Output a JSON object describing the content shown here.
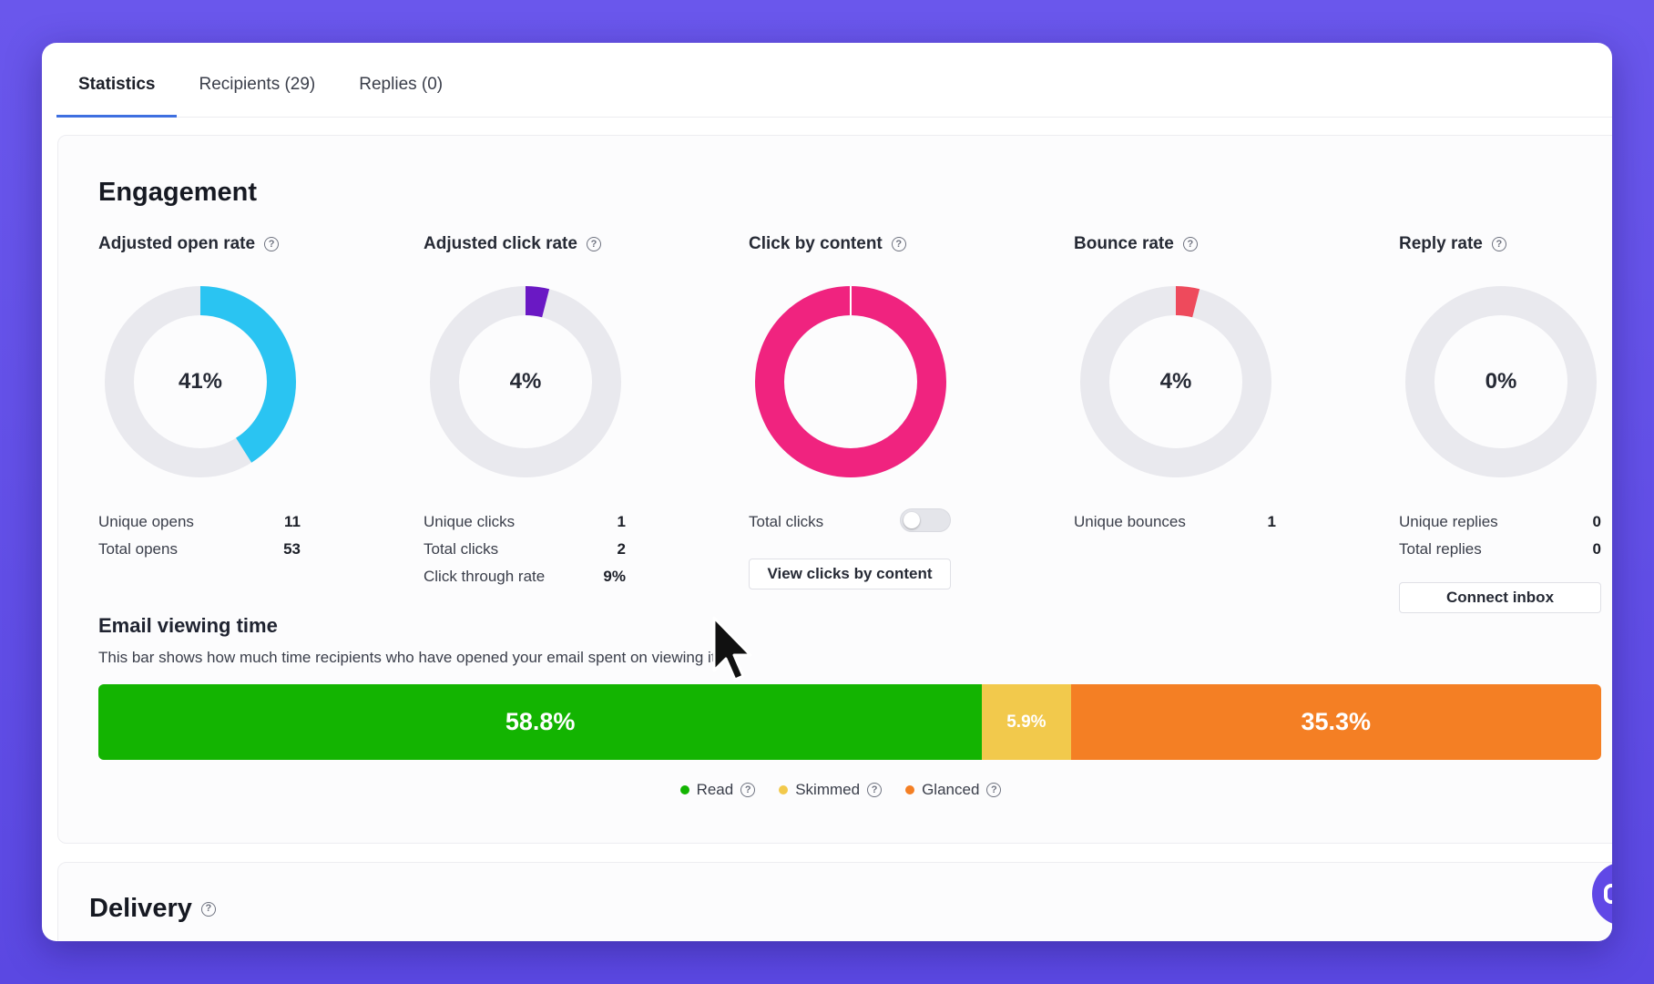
{
  "tabs": [
    {
      "label": "Statistics",
      "active": true
    },
    {
      "label": "Recipients (29)",
      "active": false
    },
    {
      "label": "Replies (0)",
      "active": false
    }
  ],
  "engagement": {
    "title": "Engagement",
    "metrics": [
      {
        "title": "Adjusted open rate",
        "value_label": "41%",
        "fraction": 0.41,
        "color": "#2ac4f2",
        "rows": [
          {
            "label": "Unique opens",
            "value": "11"
          },
          {
            "label": "Total opens",
            "value": "53"
          }
        ]
      },
      {
        "title": "Adjusted click rate",
        "value_label": "4%",
        "fraction": 0.04,
        "color": "#6a18c4",
        "rows": [
          {
            "label": "Unique clicks",
            "value": "1"
          },
          {
            "label": "Total clicks",
            "value": "2"
          },
          {
            "label": "Click through rate",
            "value": "9%"
          }
        ]
      },
      {
        "title": "Click by content",
        "value_label": "",
        "fraction": 1.0,
        "color": "#f0237f",
        "rows": [
          {
            "label": "Total clicks",
            "value": ""
          }
        ],
        "button": "View clicks by content"
      },
      {
        "title": "Bounce rate",
        "value_label": "4%",
        "fraction": 0.04,
        "color": "#ee4a5c",
        "rows": [
          {
            "label": "Unique bounces",
            "value": "1"
          }
        ]
      },
      {
        "title": "Reply rate",
        "value_label": "0%",
        "fraction": 0.0,
        "color": "#e9e9ee",
        "rows": [
          {
            "label": "Unique replies",
            "value": "0"
          },
          {
            "label": "Total replies",
            "value": "0"
          }
        ],
        "button": "Connect inbox"
      }
    ]
  },
  "viewing_time": {
    "title": "Email viewing time",
    "description": "This bar shows how much time recipients who have opened your email spent on viewing it.",
    "segments": [
      {
        "label": "58.8%",
        "fraction": 0.588,
        "color": "#13b401"
      },
      {
        "label": "5.9%",
        "fraction": 0.059,
        "color": "#f2c94c"
      },
      {
        "label": "35.3%",
        "fraction": 0.353,
        "color": "#f47f24"
      }
    ],
    "legend": [
      {
        "label": "Read",
        "color": "#13b401"
      },
      {
        "label": "Skimmed",
        "color": "#f2c94c"
      },
      {
        "label": "Glanced",
        "color": "#f47f24"
      }
    ]
  },
  "delivery": {
    "title": "Delivery"
  },
  "icons": {
    "help": "?",
    "cursor": "arrow-cursor-icon",
    "chat": "chat-bubble-icon"
  }
}
